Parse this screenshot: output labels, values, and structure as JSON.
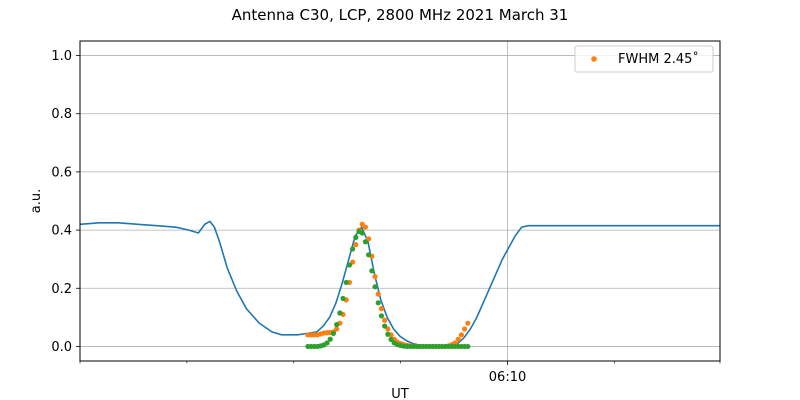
{
  "chart_data": {
    "type": "line",
    "title": "Antenna C30, LCP, 2800 MHz 2021 March 31",
    "xlabel": "UT",
    "ylabel": "a.u.",
    "ylim": [
      -0.05,
      1.05
    ],
    "yticks": [
      0.0,
      0.2,
      0.4,
      0.6,
      0.8,
      1.0
    ],
    "ytick_labels": [
      "0.0",
      "0.2",
      "0.4",
      "0.6",
      "0.8",
      "1.0"
    ],
    "xlim": [
      0,
      100
    ],
    "xticks_major": [
      {
        "x": 66.8,
        "label": "06:10"
      }
    ],
    "xticks_minor": [
      0,
      16.7,
      33.4,
      50.1,
      83.5,
      100
    ],
    "grid": true,
    "legend": {
      "placement": "top-right",
      "entries": [
        {
          "label": "FWHM 2.45$^\\circ$",
          "display": "FWHM 2.45˚",
          "color": "#ff7f0e",
          "marker": "dot"
        }
      ]
    },
    "colors": {
      "data": "#1f77b4",
      "fit": "#ff7f0e",
      "model": "#2ca02c",
      "grid": "#b0b0b0"
    },
    "series": [
      {
        "kind": "line",
        "color": "#1f77b4",
        "x": [
          0,
          3,
          6,
          9,
          12,
          15,
          17,
          18.5,
          19.5,
          20.3,
          21,
          21.8,
          23,
          24.5,
          26,
          28,
          30,
          31.5,
          33,
          34,
          35.5,
          37,
          38,
          39,
          40,
          41,
          42,
          43,
          44,
          45,
          46,
          47,
          48,
          49,
          50,
          51,
          52,
          53,
          54,
          55,
          56,
          57,
          58,
          59,
          60,
          61,
          62,
          63,
          64,
          65,
          66,
          67,
          68,
          69,
          70,
          72,
          75,
          80,
          85,
          90,
          95,
          100
        ],
        "y": [
          0.42,
          0.425,
          0.425,
          0.42,
          0.415,
          0.41,
          0.4,
          0.39,
          0.42,
          0.43,
          0.41,
          0.36,
          0.27,
          0.19,
          0.13,
          0.08,
          0.05,
          0.04,
          0.04,
          0.04,
          0.045,
          0.05,
          0.07,
          0.1,
          0.15,
          0.22,
          0.3,
          0.38,
          0.41,
          0.36,
          0.25,
          0.16,
          0.1,
          0.06,
          0.035,
          0.02,
          0.01,
          0.005,
          0.003,
          0.0,
          0.0,
          0.0,
          0.0,
          0.01,
          0.03,
          0.06,
          0.1,
          0.15,
          0.2,
          0.25,
          0.3,
          0.34,
          0.38,
          0.41,
          0.415,
          0.415,
          0.415,
          0.415,
          0.415,
          0.415,
          0.415,
          0.415
        ]
      },
      {
        "kind": "scatter",
        "color": "#ff7f0e",
        "x": [
          35.6,
          36.1,
          36.6,
          37.1,
          37.6,
          38.1,
          38.6,
          39.1,
          39.6,
          40.1,
          40.6,
          41.1,
          41.6,
          42.1,
          42.6,
          43.1,
          43.6,
          44.1,
          44.6,
          45.1,
          45.6,
          46.1,
          46.6,
          47.1,
          47.6,
          48.1,
          48.6,
          49.1,
          49.6,
          50.1,
          50.6,
          51.1,
          51.6,
          52.1,
          52.6,
          53.1,
          53.6,
          54.1,
          54.6,
          55.1,
          55.6,
          56.1,
          56.6,
          57.1,
          57.6,
          58.1,
          58.6,
          59.1,
          59.6,
          60.1,
          60.6
        ],
        "y": [
          0.04,
          0.04,
          0.04,
          0.04,
          0.043,
          0.046,
          0.047,
          0.048,
          0.05,
          0.06,
          0.08,
          0.11,
          0.16,
          0.22,
          0.29,
          0.35,
          0.4,
          0.42,
          0.41,
          0.37,
          0.31,
          0.24,
          0.18,
          0.13,
          0.09,
          0.06,
          0.04,
          0.025,
          0.015,
          0.01,
          0.006,
          0.004,
          0.002,
          0.001,
          0.0,
          0.0,
          0.0,
          0.0,
          0.0,
          0.0,
          0.0,
          0.0,
          0.0,
          0.0,
          0.002,
          0.006,
          0.012,
          0.025,
          0.04,
          0.06,
          0.08
        ]
      },
      {
        "kind": "scatter",
        "color": "#2ca02c",
        "x": [
          35.6,
          36.1,
          36.6,
          37.1,
          37.6,
          38.1,
          38.6,
          39.1,
          39.6,
          40.1,
          40.6,
          41.1,
          41.6,
          42.1,
          42.6,
          43.1,
          43.6,
          44.1,
          44.6,
          45.1,
          45.6,
          46.1,
          46.6,
          47.1,
          47.6,
          48.1,
          48.6,
          49.1,
          49.6,
          50.1,
          50.6,
          51.1,
          51.6,
          52.1,
          52.6,
          53.1,
          53.6,
          54.1,
          54.6,
          55.1,
          55.6,
          56.1,
          56.6,
          57.1,
          57.6,
          58.1,
          58.6,
          59.1,
          59.6,
          60.1,
          60.6
        ],
        "y": [
          0.0,
          0.0,
          0.0,
          0.0,
          0.002,
          0.005,
          0.012,
          0.025,
          0.045,
          0.075,
          0.115,
          0.165,
          0.22,
          0.28,
          0.335,
          0.375,
          0.395,
          0.39,
          0.36,
          0.315,
          0.26,
          0.205,
          0.15,
          0.105,
          0.07,
          0.042,
          0.024,
          0.012,
          0.006,
          0.003,
          0.001,
          0.0,
          0.0,
          0.0,
          0.0,
          0.0,
          0.0,
          0.0,
          0.0,
          0.0,
          0.0,
          0.0,
          0.0,
          0.0,
          0.0,
          0.0,
          0.0,
          0.0,
          0.0,
          0.0,
          0.0
        ]
      }
    ]
  }
}
